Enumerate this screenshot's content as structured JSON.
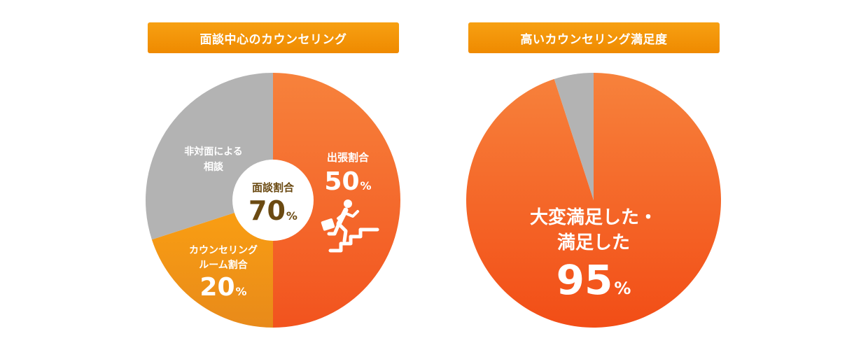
{
  "chart_data": [
    {
      "type": "pie",
      "title": "面談中心のカウンセリング",
      "slices": [
        {
          "label": "出張割合",
          "value": 50,
          "color": "#f4602a"
        },
        {
          "label": "カウンセリング ルーム割合",
          "value": 20,
          "color": "#f59a14"
        },
        {
          "label": "非対面による 相談",
          "value": 30,
          "color": "#b3b3b3"
        }
      ],
      "center_label": {
        "title": "面談割合",
        "value": "70",
        "unit": "%"
      },
      "slice_texts": {
        "business_trip": {
          "label": "出張割合",
          "value": "50",
          "unit": "%"
        },
        "counseling_room": {
          "label_line1": "カウンセリング",
          "label_line2": "ルーム割合",
          "value": "20",
          "unit": "%"
        },
        "remote": {
          "label_line1": "非対面による",
          "label_line2": "相談"
        }
      }
    },
    {
      "type": "pie",
      "title": "高いカウンセリング満足度",
      "slices": [
        {
          "label": "大変満足した・満足した",
          "value": 95,
          "color": "#f4602a"
        },
        {
          "label": "",
          "value": 5,
          "color": "#b3b3b3"
        }
      ],
      "center_text": {
        "line1": "大変満足した・",
        "line2": "満足した",
        "value": "95",
        "unit": "%"
      }
    }
  ],
  "icons": {
    "trip": "running-businessman-stairs-icon"
  }
}
